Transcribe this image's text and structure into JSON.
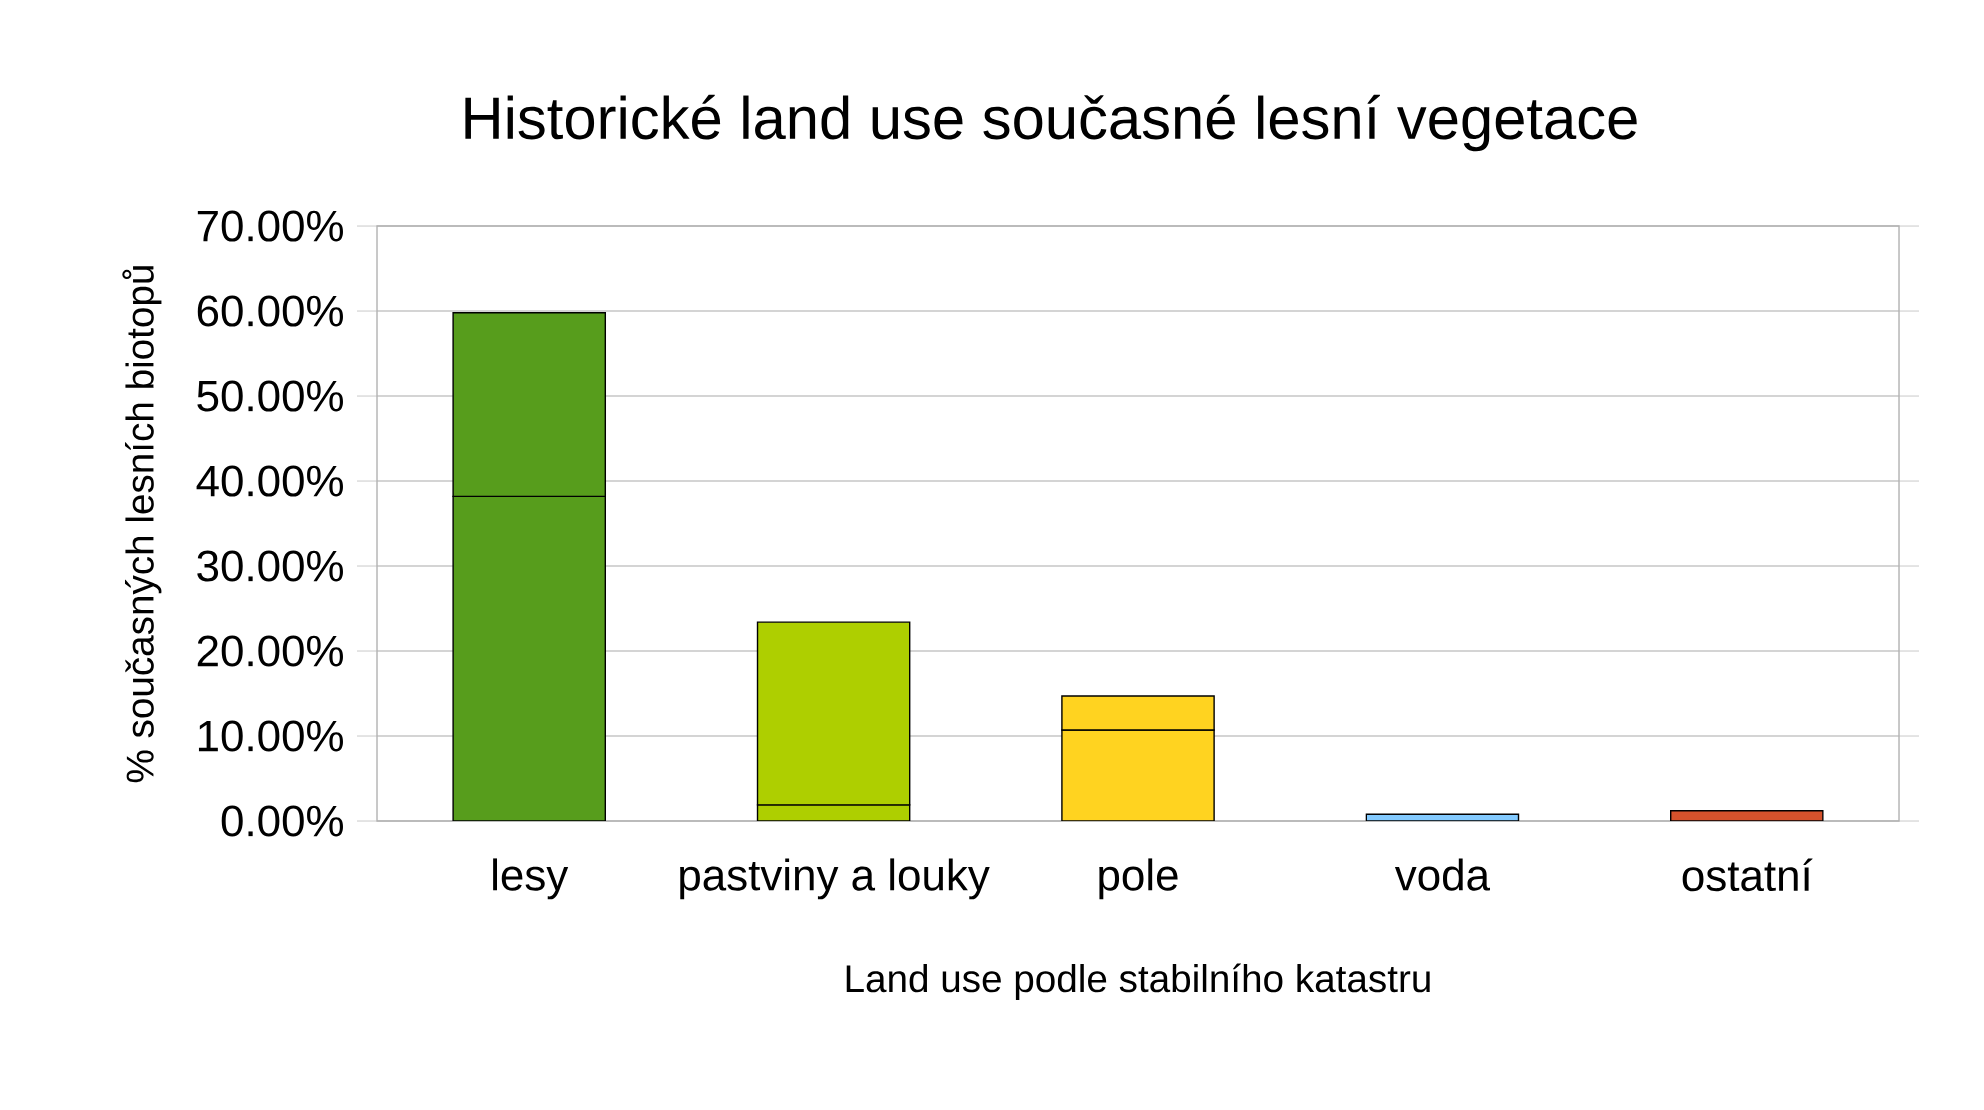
{
  "chart_data": {
    "type": "bar",
    "stacked": true,
    "title": "Historické land use současné lesní vegetace",
    "xlabel": "Land use podle stabilního katastru",
    "ylabel": "% současných lesních biotopů",
    "categories": [
      "lesy",
      "pastviny a louky",
      "pole",
      "voda",
      "ostatní"
    ],
    "series": [
      {
        "colors": [
          "#579d1c",
          "#aecf00",
          "#ffd320",
          "#83caff",
          "#d4522c"
        ],
        "values": [
          38.2,
          1.9,
          10.7,
          0,
          0
        ]
      },
      {
        "colors": [
          "#579d1c",
          "#aecf00",
          "#ffd320",
          "#83caff",
          "#d4522c"
        ],
        "values": [
          21.6,
          21.5,
          4.0,
          0.8,
          1.2
        ]
      }
    ],
    "ylim": [
      0,
      70
    ],
    "yticks": [
      {
        "value": 0,
        "label": "0.00%"
      },
      {
        "value": 10,
        "label": "10.00%"
      },
      {
        "value": 20,
        "label": "20.00%"
      },
      {
        "value": 30,
        "label": "30.00%"
      },
      {
        "value": 40,
        "label": "40.00%"
      },
      {
        "value": 50,
        "label": "50.00%"
      },
      {
        "value": 60,
        "label": "60.00%"
      },
      {
        "value": 70,
        "label": "70.00%"
      }
    ],
    "grid": "y"
  }
}
